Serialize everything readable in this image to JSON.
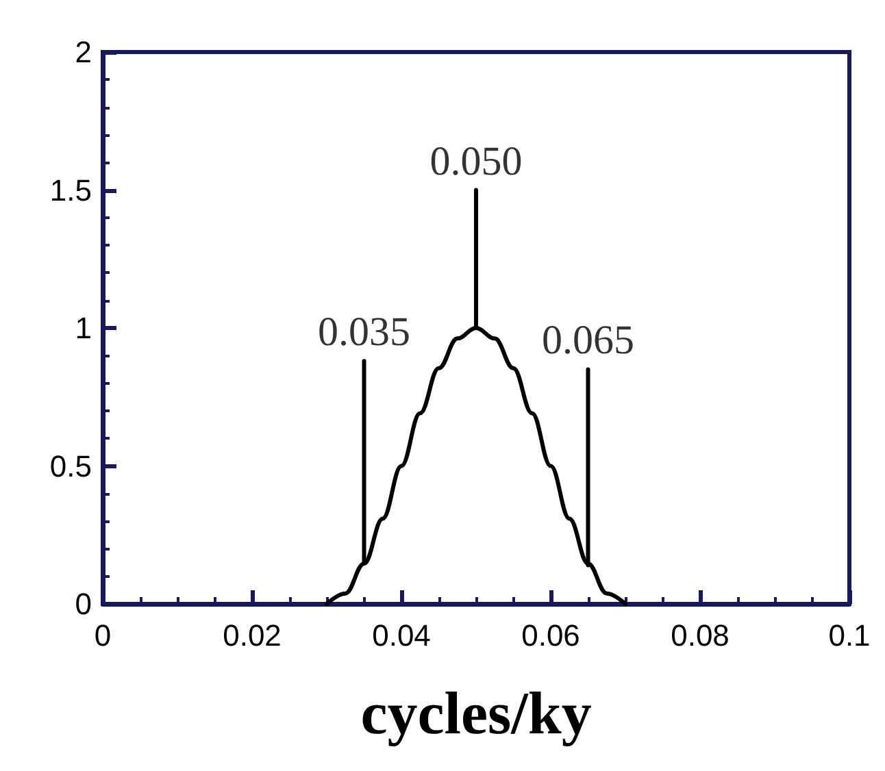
{
  "chart_data": {
    "type": "line",
    "xlabel": "cycles/ky",
    "series": [
      {
        "color": "#000000",
        "x": [
          0.03,
          0.0325,
          0.035,
          0.0375,
          0.04,
          0.0425,
          0.045,
          0.0475,
          0.05,
          0.0525,
          0.055,
          0.0575,
          0.06,
          0.0625,
          0.065,
          0.0675,
          0.07
        ],
        "values": [
          0,
          0.038,
          0.146,
          0.309,
          0.5,
          0.691,
          0.854,
          0.962,
          1,
          0.962,
          0.854,
          0.691,
          0.5,
          0.309,
          0.146,
          0.038,
          0
        ]
      },
      {
        "color": "#000000",
        "x": [
          0.035,
          0.035
        ],
        "values": [
          0.15,
          0.88
        ]
      },
      {
        "color": "#000000",
        "x": [
          0.05,
          0.05
        ],
        "values": [
          1,
          1.5
        ]
      },
      {
        "color": "#000000",
        "x": [
          0.065,
          0.065
        ],
        "values": [
          0.14,
          0.85
        ]
      }
    ],
    "annotations": [
      {
        "text": "0.035",
        "x": 0.035,
        "y": 0.88
      },
      {
        "text": "0.050",
        "x": 0.05,
        "y": 1.5
      },
      {
        "text": "0.065",
        "x": 0.065,
        "y": 0.85
      }
    ],
    "xlim": [
      0,
      0.1
    ],
    "xticks": [
      0,
      0.02,
      0.04,
      0.06,
      0.08,
      0.1
    ],
    "ylim": [
      0,
      2
    ],
    "yticks": [
      0,
      0.5,
      1,
      1.5,
      2
    ],
    "grid": false,
    "marker": "none",
    "line_style": "solid"
  }
}
